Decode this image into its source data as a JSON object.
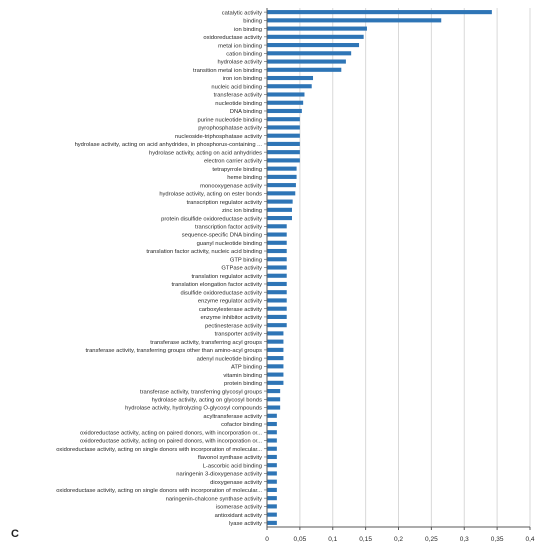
{
  "panel_label": "C",
  "colors": {
    "bar": "#2e75b6",
    "grid": "#d9d9d9",
    "axis": "#595959",
    "text": "#262626"
  },
  "chart_data": {
    "type": "bar",
    "orientation": "horizontal",
    "title": "",
    "xlabel": "",
    "ylabel": "",
    "xlim": [
      0,
      0.4
    ],
    "x_ticks": [
      "0",
      "0,05",
      "0,1",
      "0,15",
      "0,2",
      "0,25",
      "0,3",
      "0,35",
      "0,4"
    ],
    "grid": "vertical",
    "categories": [
      "catalytic activity",
      "binding",
      "ion binding",
      "oxidoreductase activity",
      "metal ion binding",
      "cation binding",
      "hydrolase activity",
      "transition metal ion binding",
      "iron ion binding",
      "nucleic acid binding",
      "transferase activity",
      "nucleotide binding",
      "DNA binding",
      "purine nucleotide binding",
      "pyrophosphatase activity",
      "nucleoside-triphosphatase activity",
      "hydrolase activity, acting on acid anhydrides, in phosphorus-containing ...",
      "hydrolase activity, acting on acid anhydrides",
      "electron carrier activity",
      "tetrapyrrole binding",
      "heme binding",
      "monooxygenase activity",
      "hydrolase activity, acting on ester bonds",
      "transcription regulator activity",
      "zinc ion binding",
      "protein disulfide oxidoreductase activity",
      "transcription factor activity",
      "sequence-specific DNA binding",
      "guanyl nucleotide binding",
      "translation factor activity, nucleic acid binding",
      "GTP binding",
      "GTPase activity",
      "translation regulator activity",
      "translation elongation factor activity",
      "disulfide oxidoreductase activity",
      "enzyme regulator activity",
      "carboxylesterase activity",
      "enzyme inhibitor activity",
      "pectinesterase activity",
      "transporter activity",
      "transferase activity, transferring acyl groups",
      "transferase activity, transferring groups other than amino-acyl groups",
      "adenyl nucleotide binding",
      "ATP binding",
      "vitamin binding",
      "protein binding",
      "transferase activity, transferring glycosyl groups",
      "hydrolase activity, acting on glycosyl bonds",
      "hydrolase activity, hydrolyzing O-glycosyl compounds",
      "acyltransferase activity",
      "cofactor binding",
      "oxidoreductase activity, acting on paired donors, with incorporation or...",
      "oxidoreductase activity, acting on paired donors, with incorporation or...",
      "oxidoreductase activity, acting on single donors with incorporation of molecular...",
      "flavonol synthase activity",
      "L-ascorbic acid binding",
      "naringenin 3-dioxygenase activity",
      "dioxygenase activity",
      "oxidoreductase activity, acting on single donors with incorporation of molecular...",
      "naringenin-chalcone synthase activity",
      "isomerase activity",
      "antioxidant activity",
      "lyase activity"
    ],
    "values": [
      0.342,
      0.265,
      0.152,
      0.147,
      0.14,
      0.128,
      0.12,
      0.113,
      0.07,
      0.068,
      0.057,
      0.055,
      0.053,
      0.05,
      0.05,
      0.05,
      0.05,
      0.05,
      0.05,
      0.045,
      0.045,
      0.044,
      0.043,
      0.039,
      0.038,
      0.038,
      0.03,
      0.03,
      0.03,
      0.03,
      0.03,
      0.03,
      0.03,
      0.03,
      0.03,
      0.03,
      0.03,
      0.03,
      0.03,
      0.025,
      0.025,
      0.025,
      0.025,
      0.025,
      0.025,
      0.025,
      0.02,
      0.02,
      0.02,
      0.015,
      0.015,
      0.015,
      0.015,
      0.015,
      0.015,
      0.015,
      0.015,
      0.015,
      0.015,
      0.015,
      0.015,
      0.015,
      0.015
    ]
  }
}
